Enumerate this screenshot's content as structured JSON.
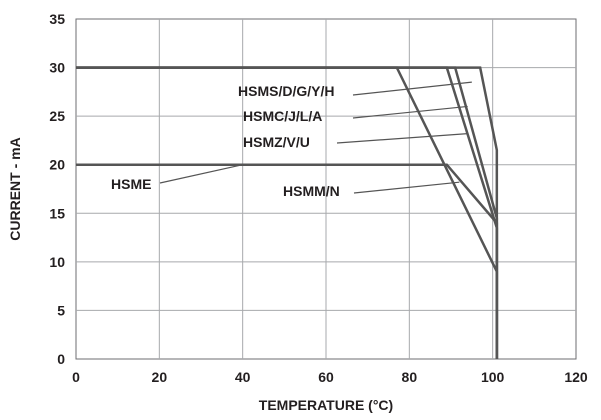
{
  "chart_data": {
    "type": "line",
    "xlabel": "TEMPERATURE (°C)",
    "ylabel": "CURRENT - mA",
    "xlim": [
      0,
      120
    ],
    "ylim": [
      0,
      35
    ],
    "x_ticks": [
      0,
      20,
      40,
      60,
      80,
      100,
      120
    ],
    "y_ticks": [
      0,
      5,
      10,
      15,
      20,
      25,
      30,
      35
    ],
    "grid": true,
    "legend": "none",
    "line_color": "#555555",
    "series": [
      {
        "name": "HSMS/D/G/Y/H",
        "x": [
          0,
          97,
          101,
          101
        ],
        "y": [
          30,
          30,
          21.5,
          0
        ]
      },
      {
        "name": "HSMC/J/L/A",
        "x": [
          0,
          91,
          101,
          101
        ],
        "y": [
          30,
          30,
          14.5,
          0
        ]
      },
      {
        "name": "HSMZ/V/U",
        "x": [
          0,
          89,
          101,
          101
        ],
        "y": [
          30,
          30,
          13.5,
          0
        ]
      },
      {
        "name": "HSMM/N",
        "x": [
          0,
          77,
          101,
          101
        ],
        "y": [
          30,
          30,
          9,
          0
        ]
      },
      {
        "name": "HSME",
        "x": [
          0,
          89,
          101,
          101
        ],
        "y": [
          20,
          20,
          14,
          0
        ]
      }
    ],
    "annotations": [
      {
        "text": "HSMS/D/G/Y/H",
        "series": 0
      },
      {
        "text": "HSMC/J/L/A",
        "series": 1
      },
      {
        "text": "HSMZ/V/U",
        "series": 2
      },
      {
        "text": "HSMM/N",
        "series": 3
      },
      {
        "text": "HSME",
        "series": 4
      }
    ]
  }
}
